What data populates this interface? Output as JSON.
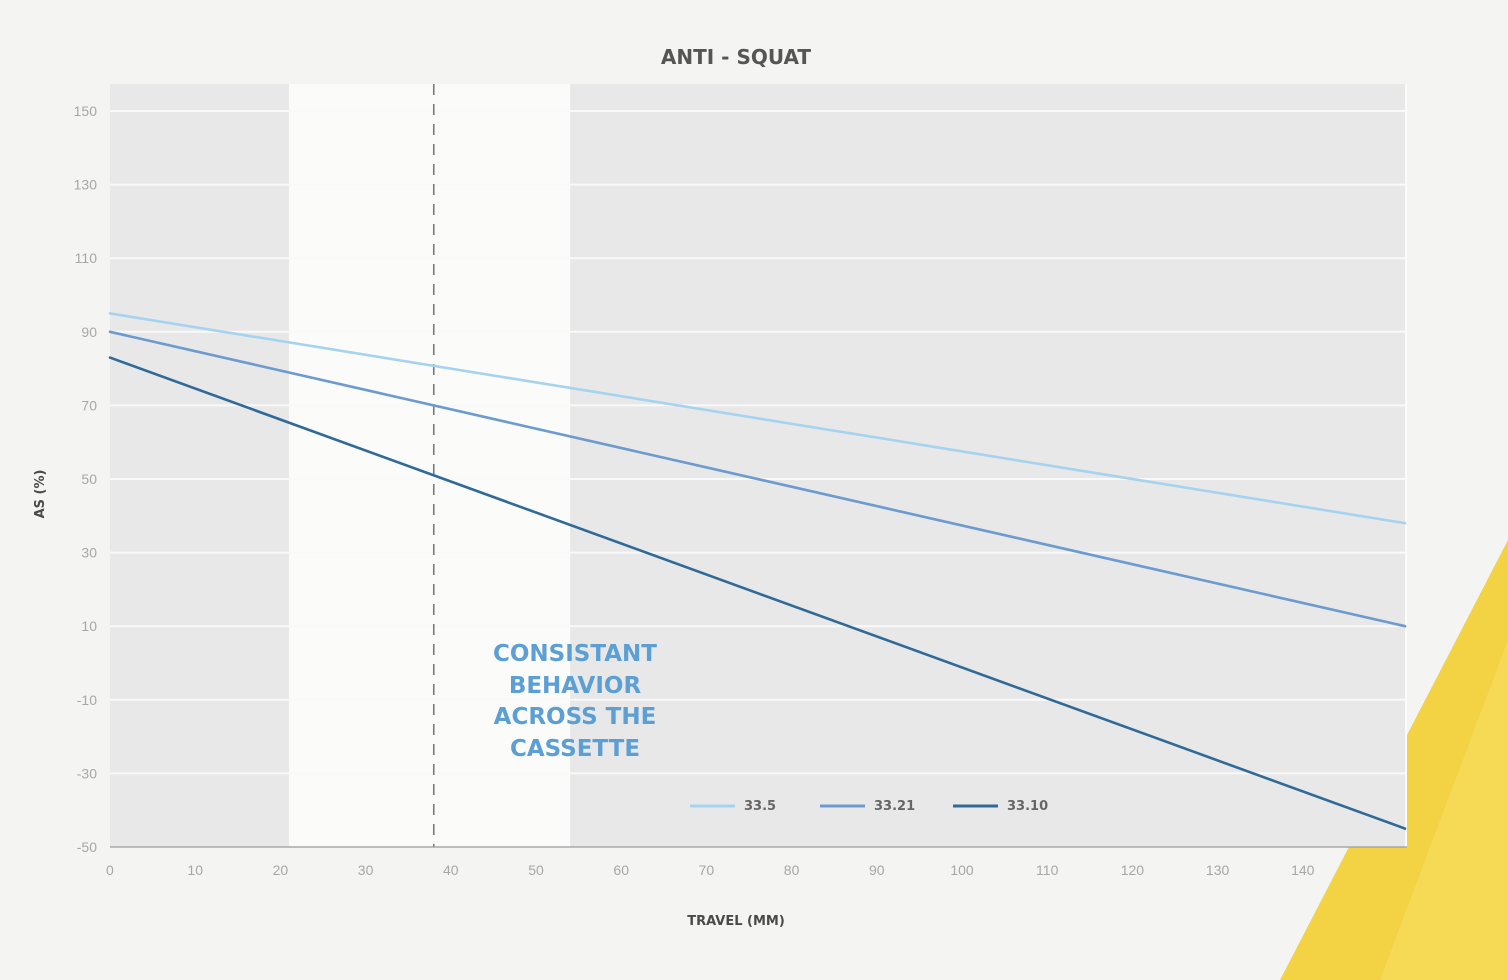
{
  "chart_data": {
    "type": "line",
    "title": "ANTI - SQUAT",
    "xlabel": "TRAVEL (MM)",
    "ylabel": "AS (%)",
    "xlim": [
      0,
      152
    ],
    "ylim": [
      -50,
      150
    ],
    "x_ticks": [
      0,
      10,
      20,
      30,
      40,
      50,
      60,
      70,
      80,
      90,
      100,
      110,
      120,
      130,
      140
    ],
    "y_ticks": [
      -50,
      -30,
      -10,
      10,
      30,
      50,
      70,
      90,
      110,
      130,
      150
    ],
    "grid": "horizontal",
    "legend_position": "bottom-center",
    "series": [
      {
        "name": "33.5",
        "color": "#a6d3ef",
        "x": [
          0,
          152
        ],
        "y": [
          95,
          38
        ]
      },
      {
        "name": "33.21",
        "color": "#6c9bd0",
        "x": [
          0,
          152
        ],
        "y": [
          90,
          10
        ]
      },
      {
        "name": "33.10",
        "color": "#2f6a98",
        "x": [
          0,
          152
        ],
        "y": [
          83,
          -45
        ]
      }
    ],
    "shaded_regions": [
      {
        "x_start": 0,
        "x_end": 21,
        "color": "#e8e8e8"
      },
      {
        "x_start": 54,
        "x_end": 152,
        "color": "#e8e8e8"
      }
    ],
    "reference_line": {
      "x": 38,
      "style": "dashed",
      "color": "#7a7a7a"
    },
    "annotation": {
      "lines": [
        "CONSISTANT",
        "BEHAVIOR",
        "ACROSS THE",
        "CASSETTE"
      ],
      "color": "#5b9fd4"
    }
  }
}
